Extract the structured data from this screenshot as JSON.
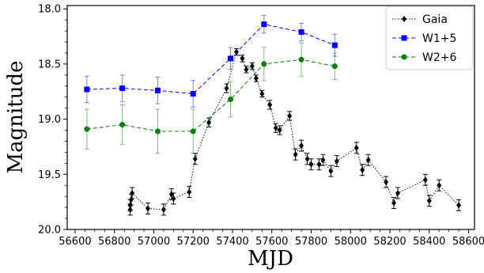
{
  "chart_data": {
    "type": "scatter",
    "xlabel": "MJD",
    "ylabel": "Magnitude",
    "xlim": [
      56560,
      58630
    ],
    "ylim": [
      20.0,
      17.97
    ],
    "y_inverted": true,
    "x_ticks": [
      56600,
      56800,
      57000,
      57200,
      57400,
      57600,
      57800,
      58000,
      58200,
      58400,
      58600
    ],
    "y_ticks": [
      18.0,
      18.5,
      19.0,
      19.5,
      20.0
    ],
    "x_tick_labels": [
      "56600",
      "56800",
      "57000",
      "57200",
      "57400",
      "57600",
      "57800",
      "58000",
      "58200",
      "58400",
      "58600"
    ],
    "y_tick_labels": [
      "18.0",
      "18.5",
      "19.0",
      "19.5",
      "20.0"
    ],
    "grid": false,
    "legend_position": "top-right",
    "series": [
      {
        "name": "Gaia",
        "color": "#000000",
        "marker": "diamond",
        "line_style": "dotted",
        "x": [
          56880,
          56880,
          56885,
          56890,
          56970,
          57050,
          57090,
          57100,
          57180,
          57210,
          57280,
          57370,
          57420,
          57450,
          57470,
          57500,
          57520,
          57550,
          57590,
          57620,
          57640,
          57690,
          57720,
          57750,
          57780,
          57800,
          57840,
          57860,
          57900,
          57930,
          58030,
          58060,
          58090,
          58180,
          58220,
          58240,
          58380,
          58400,
          58450,
          58550
        ],
        "y": [
          19.82,
          19.78,
          19.73,
          19.67,
          19.81,
          19.82,
          19.68,
          19.72,
          19.66,
          19.36,
          19.03,
          18.72,
          18.39,
          18.45,
          18.55,
          18.52,
          18.63,
          18.77,
          18.87,
          19.08,
          19.1,
          18.97,
          19.32,
          19.24,
          19.36,
          19.41,
          19.41,
          19.37,
          19.47,
          19.38,
          19.26,
          19.46,
          19.37,
          19.57,
          19.76,
          19.67,
          19.55,
          19.74,
          19.6,
          19.78
        ],
        "yerr": [
          0.05,
          0.05,
          0.05,
          0.05,
          0.05,
          0.05,
          0.05,
          0.05,
          0.05,
          0.05,
          0.04,
          0.04,
          0.03,
          0.03,
          0.03,
          0.03,
          0.03,
          0.03,
          0.04,
          0.04,
          0.04,
          0.04,
          0.05,
          0.05,
          0.05,
          0.05,
          0.05,
          0.05,
          0.05,
          0.05,
          0.05,
          0.05,
          0.05,
          0.05,
          0.05,
          0.05,
          0.05,
          0.05,
          0.05,
          0.05
        ]
      },
      {
        "name": "W1+5",
        "color": "#0000ff",
        "marker": "square",
        "line_style": "dashed",
        "x": [
          56660,
          56840,
          57020,
          57200,
          57390,
          57560,
          57750,
          57920
        ],
        "y": [
          18.73,
          18.72,
          18.74,
          18.77,
          18.45,
          18.14,
          18.21,
          18.33
        ],
        "yerr": [
          0.12,
          0.12,
          0.12,
          0.12,
          0.1,
          0.08,
          0.08,
          0.1
        ]
      },
      {
        "name": "W2+6",
        "color": "#008000",
        "marker": "circle",
        "line_style": "dashed",
        "x": [
          56660,
          56840,
          57020,
          57200,
          57390,
          57560,
          57750,
          57920
        ],
        "y": [
          19.09,
          19.05,
          19.11,
          19.11,
          18.82,
          18.5,
          18.46,
          18.52
        ],
        "yerr": [
          0.18,
          0.18,
          0.2,
          0.2,
          0.16,
          0.15,
          0.15,
          0.12
        ]
      }
    ]
  }
}
